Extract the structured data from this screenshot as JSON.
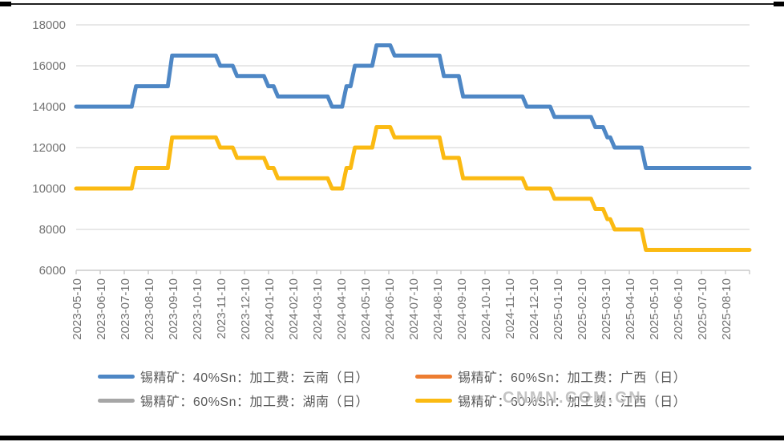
{
  "watermark": {
    "text": "CNMN.COM.CN"
  },
  "colors": {
    "grid_line": "#d9d9d9",
    "axis_line": "#bfbfbf",
    "tick_label": "#737373",
    "legend_text": "#595959",
    "frame_border": "#000000"
  },
  "chart_data": {
    "type": "line",
    "title": "",
    "xlabel": "",
    "ylabel": "",
    "grid": true,
    "legend_position": "bottom",
    "x_unit": "months_since_2023-05-10",
    "x_range": [
      0,
      28
    ],
    "x_tick_labels": [
      "2023-05-10",
      "2023-06-10",
      "2023-07-10",
      "2023-08-10",
      "2023-09-10",
      "2023-10-10",
      "2023-11-10",
      "2023-12-10",
      "2024-01-10",
      "2024-02-10",
      "2024-03-10",
      "2024-04-10",
      "2024-05-10",
      "2024-06-10",
      "2024-07-10",
      "2024-08-10",
      "2024-09-10",
      "2024-10-10",
      "2024-11-10",
      "2024-12-10",
      "2025-01-10",
      "2025-02-10",
      "2025-03-10",
      "2025-04-10",
      "2025-05-10",
      "2025-06-10",
      "2025-07-10",
      "2025-08-10"
    ],
    "ylim": [
      6000,
      18000
    ],
    "y_ticks": [
      6000,
      8000,
      10000,
      12000,
      14000,
      16000,
      18000
    ],
    "series": [
      {
        "name": "锡精矿：40%Sn：加工费：云南（日）",
        "color": "#4e87c5",
        "visible": true,
        "steps": [
          [
            0,
            14000
          ],
          [
            2.4,
            15000
          ],
          [
            3.9,
            16500
          ],
          [
            5.9,
            16000
          ],
          [
            6.6,
            15500
          ],
          [
            7.9,
            15000
          ],
          [
            8.3,
            14500
          ],
          [
            10.55,
            14000
          ],
          [
            11.15,
            15000
          ],
          [
            11.5,
            16000
          ],
          [
            12.4,
            17000
          ],
          [
            13.15,
            16500
          ],
          [
            15.2,
            15500
          ],
          [
            16.0,
            14500
          ],
          [
            18.65,
            14000
          ],
          [
            19.8,
            13500
          ],
          [
            21.5,
            13000
          ],
          [
            22.0,
            12500
          ],
          [
            22.3,
            12000
          ],
          [
            23.6,
            11000
          ]
        ]
      },
      {
        "name": "锡精矿：60%Sn：加工费：广西（日）",
        "color": "#ed7d31",
        "visible": false,
        "steps": []
      },
      {
        "name": "锡精矿：60%Sn：加工费：湖南（日）",
        "color": "#a6a6a6",
        "visible": false,
        "steps": []
      },
      {
        "name": "锡精矿：60%Sn：加工费：江西（日）",
        "color": "#fbba12",
        "visible": true,
        "steps": [
          [
            0,
            10000
          ],
          [
            2.4,
            11000
          ],
          [
            3.9,
            12500
          ],
          [
            5.9,
            12000
          ],
          [
            6.6,
            11500
          ],
          [
            7.9,
            11000
          ],
          [
            8.3,
            10500
          ],
          [
            10.55,
            10000
          ],
          [
            11.15,
            11000
          ],
          [
            11.5,
            12000
          ],
          [
            12.4,
            13000
          ],
          [
            13.15,
            12500
          ],
          [
            15.2,
            11500
          ],
          [
            16.0,
            10500
          ],
          [
            18.65,
            10000
          ],
          [
            19.8,
            9500
          ],
          [
            21.5,
            9000
          ],
          [
            22.0,
            8500
          ],
          [
            22.3,
            8000
          ],
          [
            23.6,
            7000
          ]
        ]
      }
    ]
  }
}
